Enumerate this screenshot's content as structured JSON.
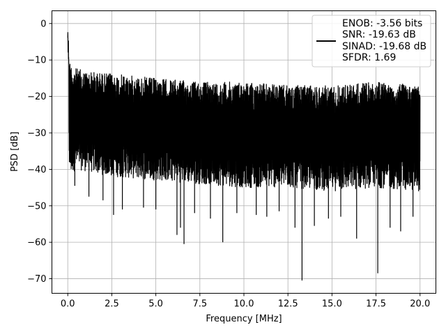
{
  "chart_data": {
    "type": "line",
    "title": "",
    "xlabel": "Frequency [MHz]",
    "ylabel": "PSD [dB]",
    "xlim": [
      -0.9,
      20.9
    ],
    "ylim": [
      -74,
      3.5
    ],
    "xticks": [
      0.0,
      2.5,
      5.0,
      7.5,
      10.0,
      12.5,
      15.0,
      17.5,
      20.0
    ],
    "xtick_labels": [
      "0.0",
      "2.5",
      "5.0",
      "7.5",
      "10.0",
      "12.5",
      "15.0",
      "17.5",
      "20.0"
    ],
    "yticks": [
      0,
      -10,
      -20,
      -30,
      -40,
      -50,
      -60,
      -70
    ],
    "ytick_labels": [
      "0",
      "−10",
      "−20",
      "−30",
      "−40",
      "−50",
      "−60",
      "−70"
    ],
    "grid": true,
    "legend_position": "top-right",
    "legend_lines": [
      "ENOB: -3.56 bits",
      "SNR: -19.63 dB",
      "SINAD: -19.68 dB",
      "SFDR: 1.69"
    ],
    "series": [
      {
        "color": "#000000",
        "x_range": [
          0,
          20
        ],
        "envelope_top": [
          [
            0.0,
            0.0
          ],
          [
            0.1,
            -10
          ],
          [
            0.3,
            -12
          ],
          [
            1.0,
            -13
          ],
          [
            3.0,
            -14
          ],
          [
            5.0,
            -15
          ],
          [
            7.5,
            -16
          ],
          [
            10.0,
            -16
          ],
          [
            12.5,
            -17
          ],
          [
            15.0,
            -17
          ],
          [
            17.5,
            -16
          ],
          [
            20.0,
            -17
          ]
        ],
        "envelope_bottom": [
          [
            0.0,
            -14
          ],
          [
            0.1,
            -42
          ],
          [
            0.5,
            -40
          ],
          [
            2.5,
            -42
          ],
          [
            5.0,
            -43
          ],
          [
            7.5,
            -44
          ],
          [
            10.0,
            -45
          ],
          [
            12.5,
            -45
          ],
          [
            15.0,
            -46
          ],
          [
            17.5,
            -45
          ],
          [
            20.0,
            -46
          ]
        ],
        "deep_nulls": [
          [
            0.4,
            -44.5
          ],
          [
            1.2,
            -47.5
          ],
          [
            2.0,
            -48.5
          ],
          [
            2.6,
            -52.5
          ],
          [
            3.1,
            -51
          ],
          [
            4.3,
            -50.5
          ],
          [
            5.0,
            -51
          ],
          [
            6.2,
            -58
          ],
          [
            6.4,
            -56
          ],
          [
            6.6,
            -60.5
          ],
          [
            7.2,
            -52
          ],
          [
            8.1,
            -53.5
          ],
          [
            8.8,
            -60
          ],
          [
            9.6,
            -52
          ],
          [
            10.7,
            -52.5
          ],
          [
            11.3,
            -53
          ],
          [
            12.0,
            -51.5
          ],
          [
            12.9,
            -56
          ],
          [
            13.3,
            -70.5
          ],
          [
            14.0,
            -55.5
          ],
          [
            14.8,
            -53.5
          ],
          [
            15.5,
            -53
          ],
          [
            16.4,
            -59
          ],
          [
            17.6,
            -68.5
          ],
          [
            18.3,
            -56
          ],
          [
            18.9,
            -57
          ],
          [
            19.6,
            -53
          ]
        ]
      }
    ]
  }
}
